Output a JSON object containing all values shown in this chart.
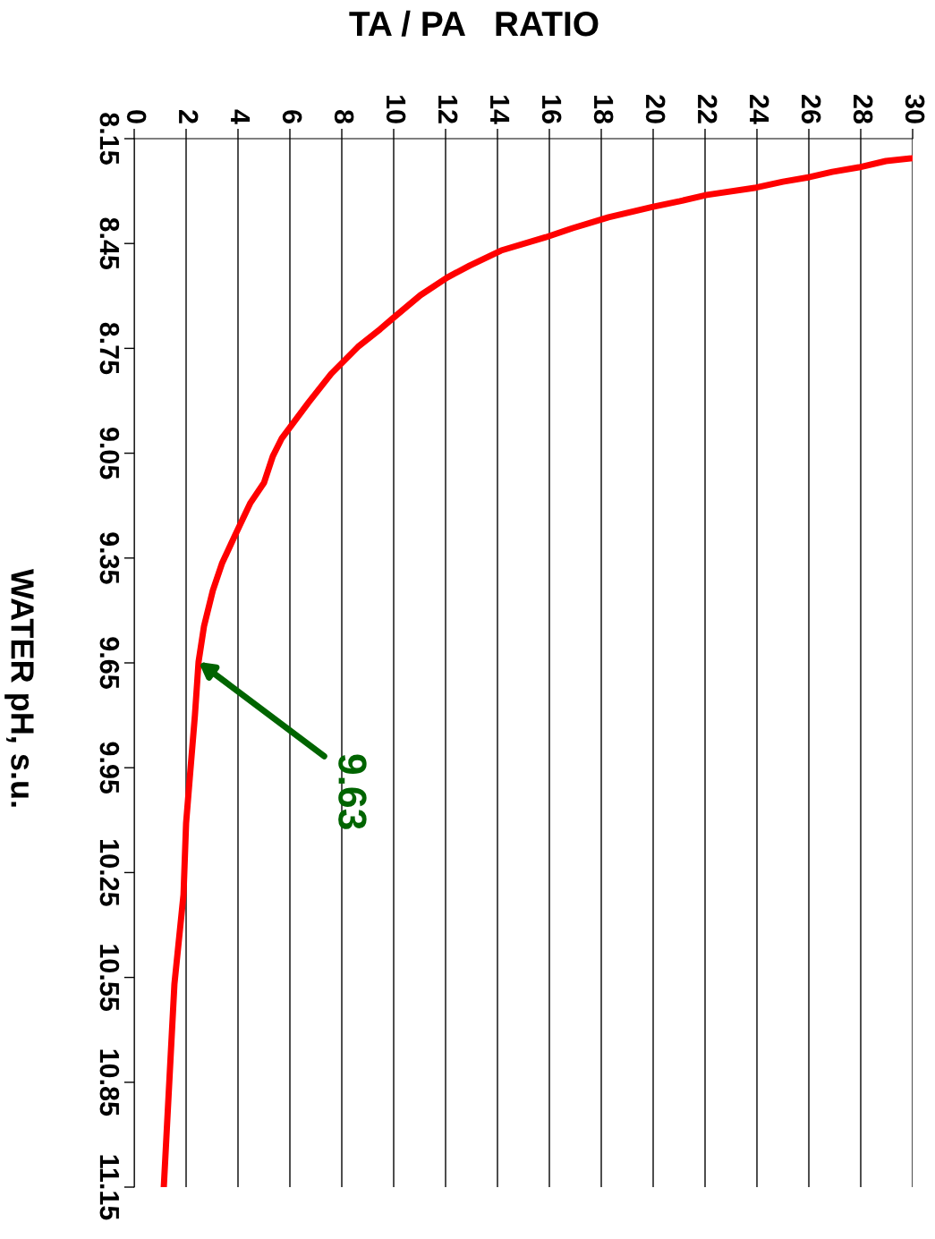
{
  "chart_data": {
    "type": "line",
    "xlabel": "TA / PA   RATIO",
    "ylabel": "WATER pH, s.u.",
    "x": [
      30,
      28.97,
      27.93,
      26.9,
      26.03,
      25.0,
      23.97,
      22.07,
      21.03,
      20.0,
      18.28,
      16.9,
      15.86,
      14.14,
      12.93,
      12.07,
      11.03,
      10.0,
      9.48,
      8.62,
      7.59,
      6.72,
      5.69,
      5.34,
      5.0,
      4.48,
      3.86,
      3.38,
      3.03,
      2.69,
      2.48,
      2.34,
      2.14,
      2.0,
      1.9,
      1.55,
      1.14
    ],
    "series": [
      {
        "color": "#ff0000",
        "values": [
          8.206,
          8.214,
          8.232,
          8.245,
          8.26,
          8.273,
          8.29,
          8.311,
          8.329,
          8.345,
          8.375,
          8.406,
          8.432,
          8.47,
          8.513,
          8.547,
          8.598,
          8.662,
          8.695,
          8.746,
          8.823,
          8.905,
          9.007,
          9.059,
          9.135,
          9.192,
          9.289,
          9.366,
          9.443,
          9.545,
          9.647,
          9.8,
          9.98,
          10.108,
          10.313,
          10.569,
          11.15
        ]
      }
    ],
    "ylim": [
      11.15,
      8.15
    ],
    "yticks": [
      {
        "value": 8.15,
        "label": "8.15"
      },
      {
        "value": 8.45,
        "label": "8.45"
      },
      {
        "value": 8.75,
        "label": "8.75"
      },
      {
        "value": 9.05,
        "label": "9.05"
      },
      {
        "value": 9.35,
        "label": "9.35"
      },
      {
        "value": 9.65,
        "label": "9.65"
      },
      {
        "value": 9.95,
        "label": "9.95"
      },
      {
        "value": 10.25,
        "label": "10.25"
      },
      {
        "value": 10.55,
        "label": "10.55"
      },
      {
        "value": 10.85,
        "label": "10.85"
      },
      {
        "value": 11.15,
        "label": "11.15"
      }
    ],
    "xlim": [
      0,
      30
    ],
    "xticks": [
      0,
      2,
      4,
      6,
      8,
      10,
      12,
      14,
      16,
      18,
      20,
      22,
      24,
      26,
      28,
      30
    ],
    "grid": "x",
    "marker": "none",
    "line_style": "solid",
    "annotations": [
      "9.63"
    ]
  }
}
